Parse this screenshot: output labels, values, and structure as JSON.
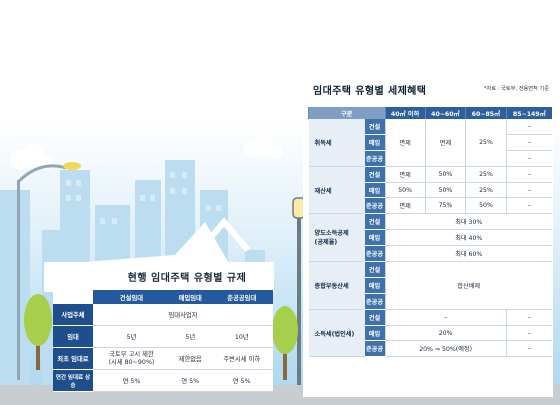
{
  "left_table": {
    "title": "현행 임대주택 유형별 규제",
    "columns": [
      "건설임대",
      "매입임대",
      "준공공임대"
    ],
    "rows": [
      {
        "label": "사업주체",
        "cells": [
          "",
          "임대사업자",
          ""
        ]
      },
      {
        "label": "임대",
        "cells": [
          "5년",
          "5년",
          "10년"
        ]
      },
      {
        "label": "최초 임대료",
        "cells": [
          "국토부 고시 제한\n(시세 80~90%)",
          "제한없음",
          "주변시세 이하"
        ]
      },
      {
        "label": "연간 임대료 상승",
        "cells": [
          "연 5%",
          "연 5%",
          "연 5%"
        ]
      }
    ]
  },
  "right_table": {
    "title": "임대주택 유형별 세제혜택",
    "source": "*자료 : 국토부, 전용면적 기준",
    "header": [
      "구분",
      "40㎡ 이하",
      "40~60㎡",
      "60~85㎡",
      "85~149㎡"
    ],
    "groups": [
      {
        "name": "취득세",
        "subs": [
          "건설",
          "매입",
          "준공공"
        ],
        "merged_text": "면제",
        "col3": "25%",
        "col4": [
          "–",
          "–",
          "–"
        ]
      },
      {
        "name": "재산세",
        "subs": [
          "건설",
          "매입",
          "준공공"
        ],
        "rows": [
          [
            "면제",
            "50%",
            "25%",
            "–"
          ],
          [
            "50%",
            "50%",
            "25%",
            "–"
          ],
          [
            "면제",
            "75%",
            "50%",
            "–"
          ]
        ]
      },
      {
        "name": "양도소득공제\n(공제율)",
        "subs": [
          "건설",
          "매입",
          "준공공"
        ],
        "rows": [
          "최대 30%",
          "최대 40%",
          "최대 60%"
        ]
      },
      {
        "name": "종합부동산세",
        "subs": [
          "건설",
          "매입",
          "준공공"
        ],
        "merged_text": "합산배제"
      },
      {
        "name": "소득세(법인세)",
        "subs": [
          "건설",
          "매입",
          "준공공"
        ],
        "rows": [
          "–",
          "20%",
          "20% ⇒ 50%(예정)"
        ],
        "col4": [
          "–",
          "–",
          "–"
        ]
      }
    ]
  },
  "icons": [
    "street-lamp-icon",
    "cloud-icon",
    "tree-icon",
    "city-skyline-illustration"
  ]
}
